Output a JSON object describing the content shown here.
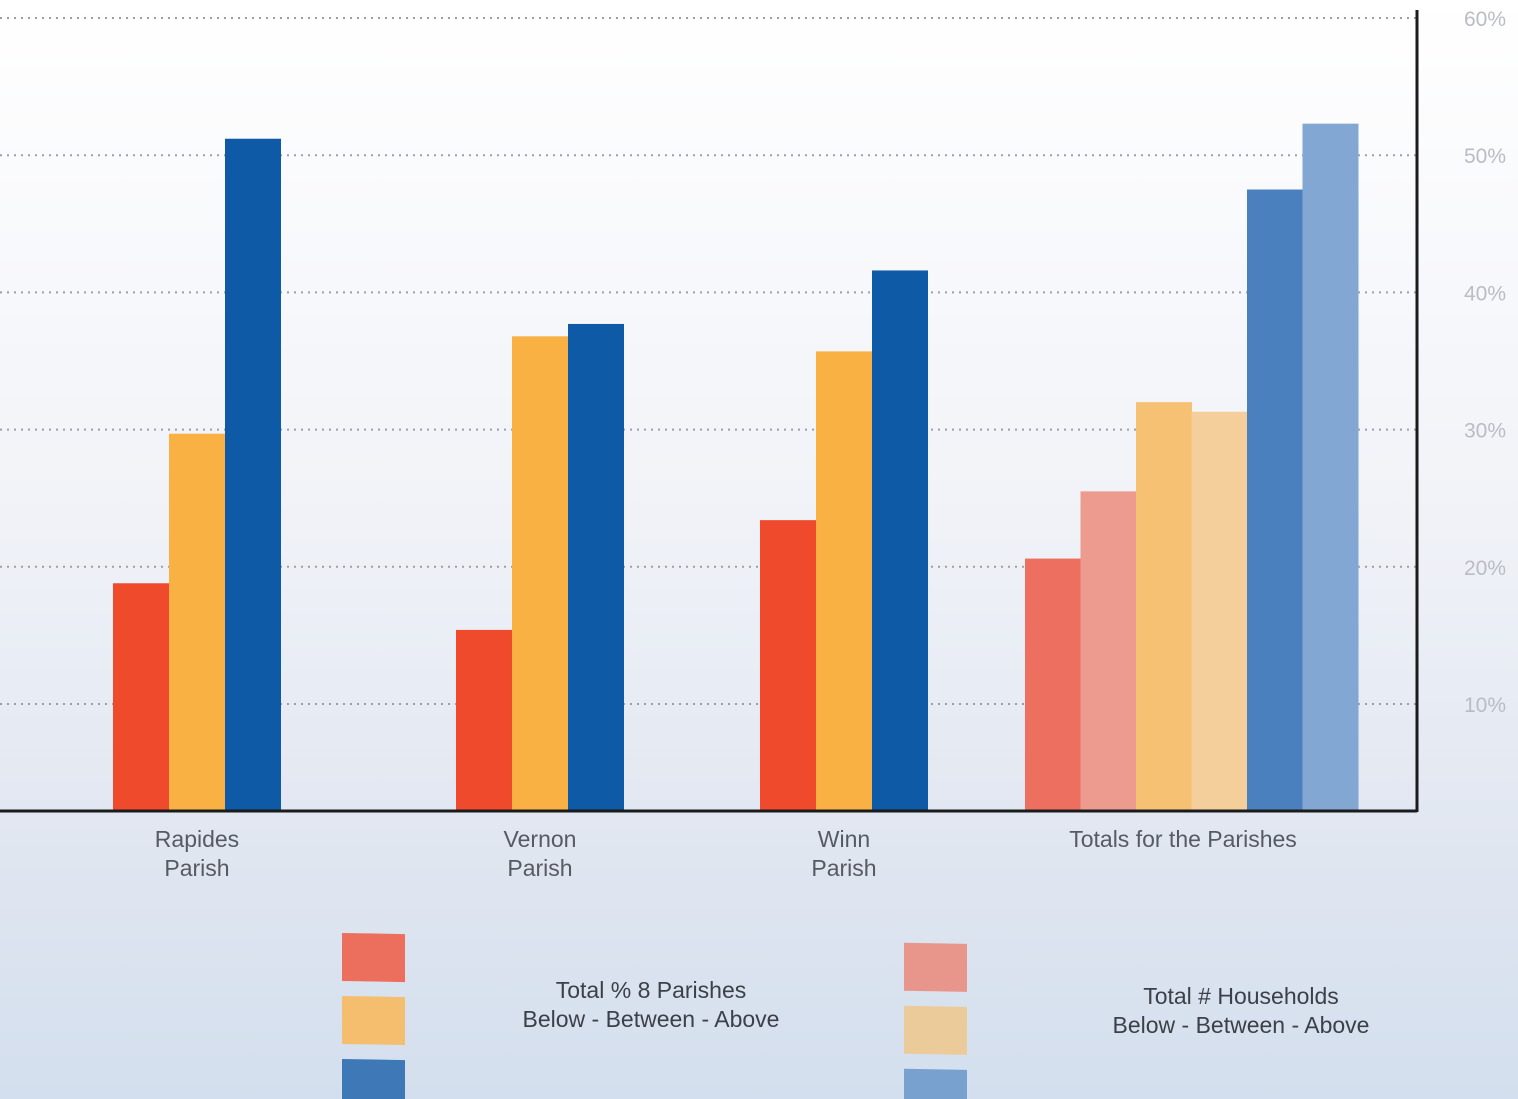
{
  "chart_data": {
    "type": "bar",
    "ylim": [
      3,
      60
    ],
    "grid": true,
    "y_ticks": [
      10,
      20,
      30,
      40,
      50,
      60
    ],
    "y_tick_labels": [
      "10%",
      "20%",
      "30%",
      "40%",
      "50%",
      "60%"
    ],
    "y_axis_position": "right",
    "categories": [
      {
        "lines": [
          "Rapides",
          "Parish"
        ]
      },
      {
        "lines": [
          "Vernon",
          "Parish"
        ]
      },
      {
        "lines": [
          "Winn",
          "Parish"
        ]
      },
      {
        "lines": [
          "Totals for the Parishes"
        ]
      }
    ],
    "groups": [
      {
        "bars": [
          {
            "value": 18.8,
            "color": "#ee4a2b"
          },
          {
            "value": 29.7,
            "color": "#fab143"
          },
          {
            "value": 51.2,
            "color": "#0f5aa6"
          }
        ]
      },
      {
        "bars": [
          {
            "value": 15.4,
            "color": "#ee4a2b"
          },
          {
            "value": 36.8,
            "color": "#fab143"
          },
          {
            "value": 37.7,
            "color": "#0f5aa6"
          }
        ]
      },
      {
        "bars": [
          {
            "value": 23.4,
            "color": "#ee4a2b"
          },
          {
            "value": 35.7,
            "color": "#fab143"
          },
          {
            "value": 41.6,
            "color": "#0f5aa6"
          }
        ]
      },
      {
        "bars": [
          {
            "value": 20.6,
            "color": "#ed6f5f"
          },
          {
            "value": 25.5,
            "color": "#ee9b8f"
          },
          {
            "value": 32.0,
            "color": "#f6c172"
          },
          {
            "value": 31.3,
            "color": "#f5cf9b"
          },
          {
            "value": 47.5,
            "color": "#4a80bd"
          },
          {
            "value": 52.3,
            "color": "#81a7d2"
          }
        ]
      }
    ],
    "legend": [
      {
        "lines": [
          "Total % 8 Parishes",
          "Below - Between - Above"
        ],
        "swatches": [
          "#ec6e5c",
          "#f4be6e",
          "#3f78b7"
        ]
      },
      {
        "lines": [
          "Total # Households",
          "Below - Between - Above"
        ],
        "swatches": [
          "#e8968b",
          "#eccb9a",
          "#78a1cf"
        ]
      }
    ]
  }
}
